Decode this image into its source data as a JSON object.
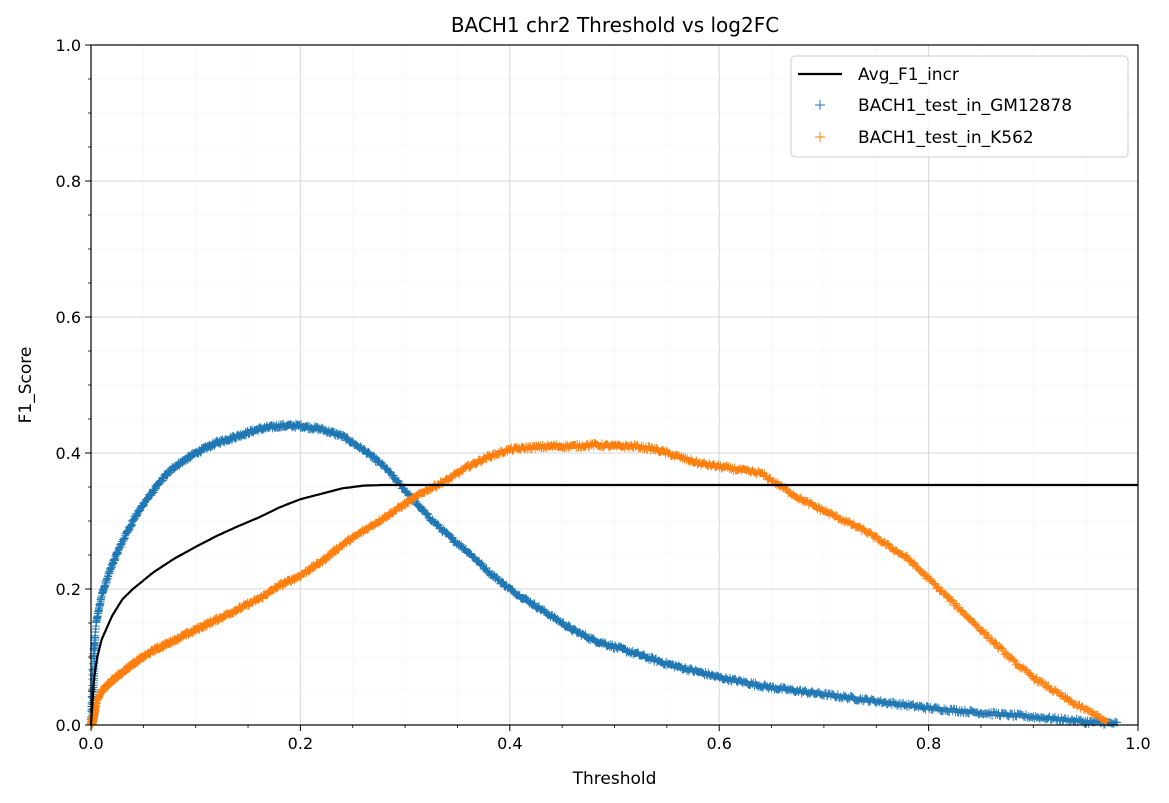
{
  "chart_data": {
    "type": "scatter",
    "title": "BACH1 chr2 Threshold vs log2FC",
    "xlabel": "Threshold",
    "ylabel": "F1_Score",
    "xlim": [
      0,
      1
    ],
    "ylim": [
      0,
      1
    ],
    "xticks": [
      "0.0",
      "0.2",
      "0.4",
      "0.6",
      "0.8",
      "1.0"
    ],
    "yticks": [
      "0.0",
      "0.2",
      "0.4",
      "0.6",
      "0.8",
      "1.0"
    ],
    "grid": true,
    "legend_position": "top-right",
    "series": [
      {
        "name": "Avg_F1_incr",
        "kind": "line",
        "color": "#000000",
        "points": [
          [
            0,
            0.0
          ],
          [
            0.003,
            0.07
          ],
          [
            0.006,
            0.1
          ],
          [
            0.01,
            0.125
          ],
          [
            0.02,
            0.16
          ],
          [
            0.03,
            0.185
          ],
          [
            0.04,
            0.2
          ],
          [
            0.06,
            0.225
          ],
          [
            0.08,
            0.245
          ],
          [
            0.1,
            0.262
          ],
          [
            0.12,
            0.278
          ],
          [
            0.14,
            0.292
          ],
          [
            0.16,
            0.305
          ],
          [
            0.18,
            0.32
          ],
          [
            0.2,
            0.332
          ],
          [
            0.22,
            0.34
          ],
          [
            0.24,
            0.348
          ],
          [
            0.26,
            0.352
          ],
          [
            0.28,
            0.353
          ],
          [
            0.3,
            0.353
          ],
          [
            0.4,
            0.353
          ],
          [
            0.5,
            0.353
          ],
          [
            0.6,
            0.353
          ],
          [
            0.7,
            0.353
          ],
          [
            0.8,
            0.353
          ],
          [
            0.9,
            0.353
          ],
          [
            1.0,
            0.353
          ]
        ]
      },
      {
        "name": "BACH1_test_in_GM12878",
        "kind": "scatter",
        "marker": "+",
        "color": "#1f77b4",
        "points": [
          [
            0,
            0.0
          ],
          [
            0.002,
            0.1
          ],
          [
            0.005,
            0.15
          ],
          [
            0.01,
            0.19
          ],
          [
            0.02,
            0.235
          ],
          [
            0.03,
            0.27
          ],
          [
            0.04,
            0.3
          ],
          [
            0.05,
            0.325
          ],
          [
            0.06,
            0.345
          ],
          [
            0.07,
            0.365
          ],
          [
            0.08,
            0.38
          ],
          [
            0.1,
            0.4
          ],
          [
            0.12,
            0.415
          ],
          [
            0.14,
            0.425
          ],
          [
            0.16,
            0.435
          ],
          [
            0.18,
            0.44
          ],
          [
            0.2,
            0.44
          ],
          [
            0.22,
            0.435
          ],
          [
            0.24,
            0.425
          ],
          [
            0.26,
            0.405
          ],
          [
            0.28,
            0.38
          ],
          [
            0.3,
            0.345
          ],
          [
            0.32,
            0.31
          ],
          [
            0.34,
            0.28
          ],
          [
            0.36,
            0.255
          ],
          [
            0.38,
            0.225
          ],
          [
            0.4,
            0.2
          ],
          [
            0.42,
            0.18
          ],
          [
            0.44,
            0.16
          ],
          [
            0.46,
            0.14
          ],
          [
            0.48,
            0.125
          ],
          [
            0.5,
            0.115
          ],
          [
            0.52,
            0.105
          ],
          [
            0.55,
            0.09
          ],
          [
            0.6,
            0.07
          ],
          [
            0.65,
            0.055
          ],
          [
            0.7,
            0.045
          ],
          [
            0.75,
            0.035
          ],
          [
            0.8,
            0.025
          ],
          [
            0.85,
            0.018
          ],
          [
            0.9,
            0.012
          ],
          [
            0.95,
            0.005
          ],
          [
            0.98,
            0.002
          ]
        ]
      },
      {
        "name": "BACH1_test_in_K562",
        "kind": "scatter",
        "marker": "+",
        "color": "#ff7f0e",
        "points": [
          [
            0,
            0.0
          ],
          [
            0.003,
            0.02
          ],
          [
            0.006,
            0.035
          ],
          [
            0.01,
            0.05
          ],
          [
            0.02,
            0.065
          ],
          [
            0.04,
            0.09
          ],
          [
            0.06,
            0.11
          ],
          [
            0.08,
            0.125
          ],
          [
            0.1,
            0.14
          ],
          [
            0.12,
            0.155
          ],
          [
            0.14,
            0.17
          ],
          [
            0.16,
            0.185
          ],
          [
            0.18,
            0.205
          ],
          [
            0.2,
            0.22
          ],
          [
            0.22,
            0.24
          ],
          [
            0.24,
            0.265
          ],
          [
            0.26,
            0.285
          ],
          [
            0.28,
            0.305
          ],
          [
            0.3,
            0.325
          ],
          [
            0.32,
            0.345
          ],
          [
            0.34,
            0.36
          ],
          [
            0.36,
            0.38
          ],
          [
            0.38,
            0.395
          ],
          [
            0.4,
            0.405
          ],
          [
            0.42,
            0.408
          ],
          [
            0.44,
            0.41
          ],
          [
            0.46,
            0.41
          ],
          [
            0.48,
            0.412
          ],
          [
            0.5,
            0.41
          ],
          [
            0.52,
            0.41
          ],
          [
            0.54,
            0.405
          ],
          [
            0.56,
            0.395
          ],
          [
            0.58,
            0.385
          ],
          [
            0.6,
            0.38
          ],
          [
            0.62,
            0.375
          ],
          [
            0.64,
            0.37
          ],
          [
            0.66,
            0.35
          ],
          [
            0.68,
            0.33
          ],
          [
            0.7,
            0.315
          ],
          [
            0.72,
            0.3
          ],
          [
            0.74,
            0.285
          ],
          [
            0.76,
            0.265
          ],
          [
            0.78,
            0.245
          ],
          [
            0.8,
            0.215
          ],
          [
            0.82,
            0.185
          ],
          [
            0.84,
            0.155
          ],
          [
            0.86,
            0.125
          ],
          [
            0.88,
            0.095
          ],
          [
            0.9,
            0.07
          ],
          [
            0.92,
            0.05
          ],
          [
            0.94,
            0.03
          ],
          [
            0.96,
            0.015
          ],
          [
            0.97,
            0.003
          ]
        ]
      }
    ]
  }
}
